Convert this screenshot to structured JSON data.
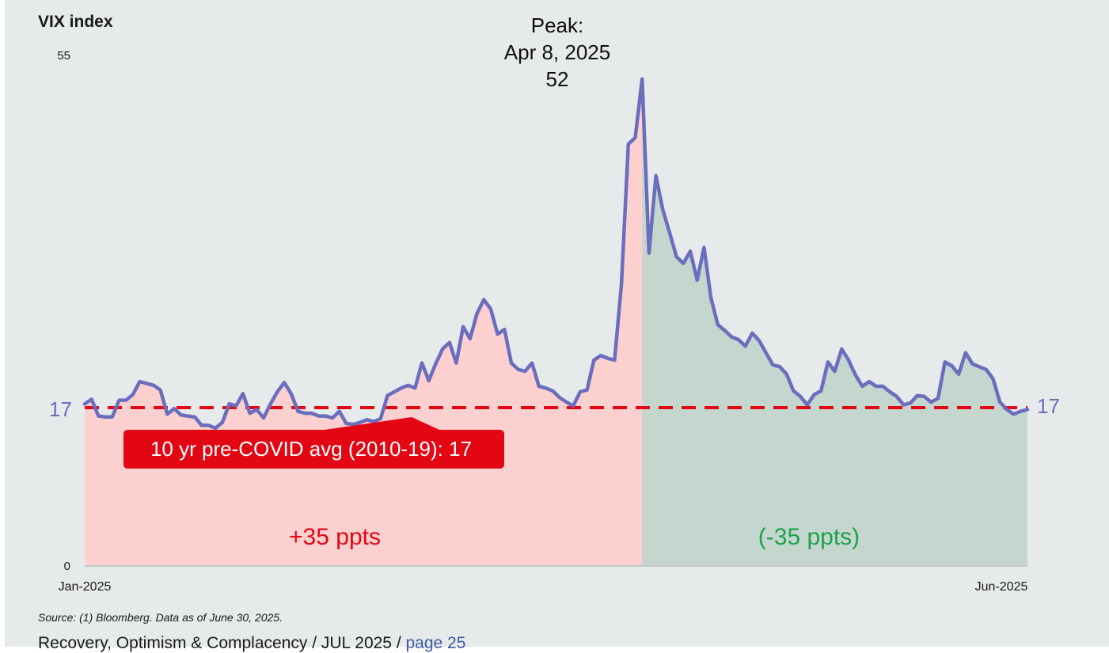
{
  "chart_data": {
    "type": "area",
    "ylabel": "VIX index",
    "ylim": [
      0,
      55
    ],
    "y_ticks": [
      "0",
      "55"
    ],
    "x_ticks": [
      "Jan-2025",
      "Jun-2025"
    ],
    "start_label": "17",
    "end_label": "17",
    "peak_annotation": {
      "line1": "Peak:",
      "line2": "Apr 8, 2025",
      "line3": "52"
    },
    "reference_line": {
      "value": 17,
      "label": "10 yr pre-COVID avg (2010-19): 17",
      "color": "#e30613"
    },
    "rise_label": "+35 ppts",
    "fall_label": "(-35 ppts)",
    "series_color": "#6b6dbd",
    "rise_fill_color": "#fdd0d0",
    "fall_fill_color": "#c4d6ce",
    "values": [
      17.4,
      17.9,
      16.1,
      16.0,
      16.0,
      17.8,
      17.8,
      18.4,
      19.8,
      19.6,
      19.4,
      18.9,
      16.3,
      16.9,
      16.2,
      16.1,
      16.0,
      15.1,
      15.1,
      14.8,
      15.4,
      17.4,
      17.2,
      18.5,
      16.4,
      16.8,
      15.9,
      17.4,
      18.7,
      19.7,
      18.5,
      16.6,
      16.4,
      16.4,
      16.1,
      16.1,
      15.9,
      16.6,
      15.3,
      15.2,
      15.4,
      15.7,
      15.5,
      15.8,
      18.3,
      18.7,
      19.1,
      19.4,
      19.1,
      21.8,
      19.9,
      21.7,
      23.3,
      24.0,
      21.8,
      25.7,
      24.4,
      27.1,
      28.6,
      27.6,
      24.9,
      25.4,
      21.8,
      21.1,
      20.9,
      21.8,
      19.3,
      19.1,
      18.8,
      18.1,
      17.6,
      17.2,
      18.7,
      18.9,
      22.1,
      22.6,
      22.3,
      22.1,
      30.3,
      45.3,
      46.0,
      52.3,
      33.6,
      41.9,
      38.3,
      35.8,
      33.2,
      32.5,
      33.8,
      30.7,
      34.2,
      28.8,
      25.9,
      25.3,
      24.6,
      24.3,
      23.6,
      25.0,
      24.2,
      22.9,
      21.6,
      21.4,
      20.6,
      18.8,
      18.2,
      17.3,
      18.4,
      18.8,
      21.9,
      20.9,
      23.3,
      22.1,
      20.5,
      19.3,
      19.8,
      19.3,
      19.3,
      18.7,
      18.2,
      17.3,
      17.5,
      18.3,
      18.2,
      17.6,
      18.0,
      21.9,
      21.5,
      20.6,
      22.9,
      21.7,
      21.4,
      21.1,
      20.1,
      17.6,
      16.8,
      16.3,
      16.6,
      16.8
    ]
  },
  "source_note": "Source: (1) Bloomberg. Data as of June 30, 2025.",
  "footer": {
    "text": "Recovery, Optimism & Complacency / JUL 2025 / ",
    "page_link": "page 25"
  }
}
